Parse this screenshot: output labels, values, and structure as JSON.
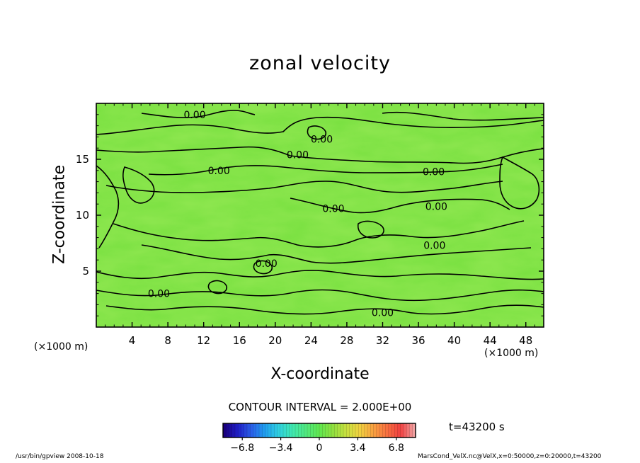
{
  "chart_data": {
    "type": "heatmap",
    "title": "zonal velocity",
    "xlabel": "X-coordinate",
    "ylabel": "Z-coordinate",
    "x_unit": "(×1000 m)",
    "y_unit": "(×1000 m)",
    "xlim": [
      0,
      50
    ],
    "ylim": [
      0,
      20
    ],
    "x_ticks": [
      "4",
      "8",
      "12",
      "16",
      "20",
      "24",
      "28",
      "32",
      "36",
      "40",
      "44",
      "48"
    ],
    "y_ticks": [
      "5",
      "10",
      "15"
    ],
    "contour_interval_label": "CONTOUR INTERVAL = 2.000E+00",
    "contour_label_text": "0.00",
    "contour_labels": [
      {
        "x": 11.0,
        "z": 19.0
      },
      {
        "x": 25.2,
        "z": 16.8
      },
      {
        "x": 22.5,
        "z": 15.4
      },
      {
        "x": 13.7,
        "z": 14.0
      },
      {
        "x": 37.7,
        "z": 13.9
      },
      {
        "x": 26.5,
        "z": 10.6
      },
      {
        "x": 38.0,
        "z": 10.8
      },
      {
        "x": 37.8,
        "z": 7.3
      },
      {
        "x": 19.0,
        "z": 5.7
      },
      {
        "x": 7.0,
        "z": 3.0
      },
      {
        "x": 32.0,
        "z": 1.3
      }
    ],
    "colorbar": {
      "min": -8.5,
      "max": 8.5,
      "tick_values": [
        -6.8,
        -3.4,
        0,
        3.4,
        6.8
      ],
      "tick_labels": [
        "−6.8",
        "−3.4",
        "0",
        "3.4",
        "6.8"
      ],
      "colors": [
        "#1a0080",
        "#2020c8",
        "#2a60e8",
        "#20a0f0",
        "#30d0e0",
        "#40e8b0",
        "#50e880",
        "#60e850",
        "#90e040",
        "#c8e040",
        "#f0d040",
        "#f8a040",
        "#f87040",
        "#f04040",
        "#f0a0a0"
      ]
    },
    "field_color": "#78e040",
    "time_label": "t=43200 s"
  },
  "footer": {
    "left": "/usr/bin/gpview   2008-10-18",
    "right": "MarsCond_VelX.nc@VelX,x=0:50000,z=0:20000,t=43200"
  }
}
